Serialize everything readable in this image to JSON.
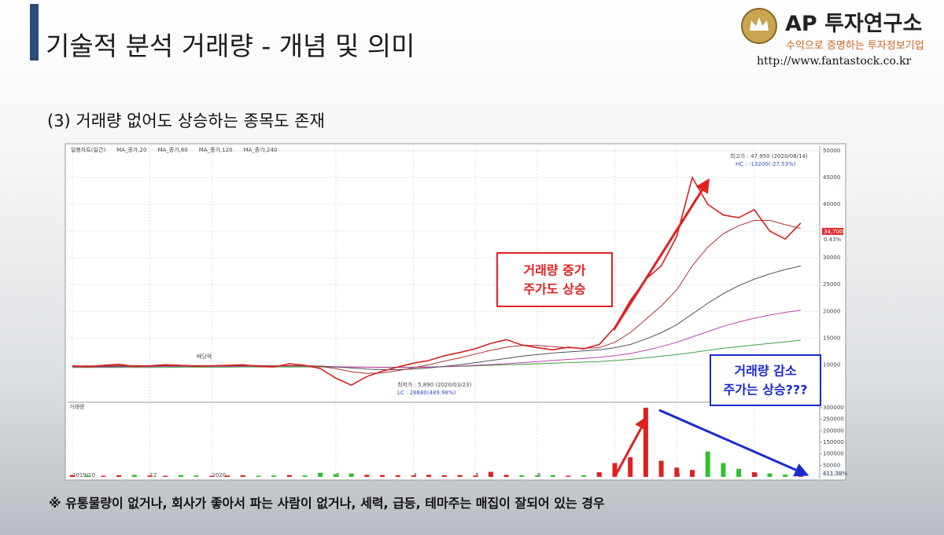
{
  "header": {
    "title": "기술적 분석 거래량 - 개념 및 의미",
    "logo_name": "AP 투자연구소",
    "logo_tagline": "수익으로 증명하는 투자정보기업",
    "url": "http://www.fantastock.co.kr"
  },
  "subtitle": "(3) 거래량 없어도 상승하는 종목도 존재",
  "chart_data": {
    "type": "line",
    "categories": [
      "2019/10",
      null,
      null,
      null,
      null,
      "12",
      null,
      null,
      null,
      "2020",
      null,
      null,
      null,
      null,
      null,
      null,
      null,
      "3",
      null,
      null,
      null,
      null,
      "4",
      null,
      null,
      null,
      "5",
      null,
      null,
      null,
      "6",
      null,
      null,
      null,
      null,
      "7",
      null,
      null,
      null,
      "8",
      null,
      null,
      null,
      null,
      "9",
      null,
      null,
      null
    ],
    "series": [
      {
        "name": "일봉차트(일간)",
        "color": "#d62020",
        "values": [
          9800,
          9600,
          9900,
          10100,
          9700,
          9800,
          10000,
          9900,
          9700,
          9800,
          9900,
          10000,
          9700,
          9600,
          10200,
          9900,
          9300,
          7500,
          6200,
          7800,
          8800,
          9600,
          10300,
          10800,
          11700,
          12300,
          13000,
          14000,
          14700,
          13700,
          13200,
          12800,
          13300,
          13000,
          13800,
          17000,
          22000,
          26000,
          28500,
          34000,
          45000,
          40000,
          38000,
          37500,
          39000,
          35000,
          33500,
          36500
        ]
      },
      {
        "name": "MA_종가,20",
        "color": "#b03030",
        "values": [
          9800,
          9800,
          9800,
          9850,
          9850,
          9800,
          9850,
          9900,
          9850,
          9850,
          9850,
          9900,
          9850,
          9800,
          9850,
          9850,
          9700,
          9300,
          8700,
          8400,
          8500,
          8900,
          9400,
          10000,
          10700,
          11300,
          12000,
          12700,
          13300,
          13600,
          13600,
          13400,
          13200,
          13100,
          13200,
          14200,
          16000,
          18500,
          21000,
          24000,
          28500,
          32000,
          34500,
          36000,
          37000,
          37000,
          36200,
          35500
        ]
      },
      {
        "name": "MA_종가,60",
        "color": "#505060",
        "values": [
          9700,
          9700,
          9700,
          9750,
          9750,
          9750,
          9800,
          9800,
          9800,
          9800,
          9800,
          9800,
          9800,
          9800,
          9800,
          9800,
          9750,
          9600,
          9400,
          9200,
          9100,
          9100,
          9200,
          9400,
          9700,
          10000,
          10400,
          10800,
          11200,
          11600,
          11900,
          12200,
          12400,
          12600,
          12800,
          13200,
          13800,
          14800,
          16000,
          17500,
          19500,
          21500,
          23300,
          24800,
          26000,
          27000,
          27800,
          28500
        ]
      },
      {
        "name": "MA_종가,120",
        "color": "#c040b0",
        "values": [
          9600,
          9600,
          9600,
          9650,
          9650,
          9650,
          9700,
          9700,
          9700,
          9700,
          9700,
          9700,
          9750,
          9750,
          9750,
          9750,
          9700,
          9650,
          9600,
          9550,
          9500,
          9500,
          9500,
          9550,
          9650,
          9750,
          9900,
          10050,
          10200,
          10400,
          10600,
          10800,
          11000,
          11200,
          11400,
          11700,
          12100,
          12700,
          13400,
          14200,
          15200,
          16200,
          17200,
          18000,
          18700,
          19300,
          19800,
          20200
        ]
      },
      {
        "name": "MA_종가,240",
        "color": "#40a040",
        "values": [
          9500,
          9500,
          9500,
          9500,
          9500,
          9500,
          9500,
          9550,
          9550,
          9550,
          9550,
          9600,
          9600,
          9600,
          9600,
          9600,
          9600,
          9600,
          9600,
          9550,
          9550,
          9550,
          9550,
          9600,
          9650,
          9700,
          9800,
          9900,
          10000,
          10100,
          10200,
          10300,
          10400,
          10500,
          10600,
          10800,
          11000,
          11300,
          11600,
          11900,
          12300,
          12700,
          13100,
          13400,
          13700,
          14000,
          14300,
          14600
        ]
      }
    ],
    "ylim": [
      3000,
      50000
    ],
    "yticks": [
      10000,
      15000,
      20000,
      25000,
      30000,
      35000,
      40000,
      45000,
      50000
    ],
    "volume": {
      "name": "거래량",
      "up_color": "#e02020",
      "down_color": "#30c030",
      "values": [
        8000,
        6000,
        5000,
        7000,
        9000,
        6000,
        5000,
        8000,
        6000,
        5000,
        6000,
        7000,
        5000,
        6000,
        8000,
        6000,
        18000,
        12000,
        15000,
        9000,
        8000,
        7000,
        6000,
        9000,
        7000,
        8000,
        6000,
        22000,
        9000,
        7000,
        6000,
        8000,
        5000,
        7000,
        20000,
        60000,
        85000,
        300000,
        70000,
        40000,
        30000,
        110000,
        60000,
        35000,
        20000,
        15000,
        10000,
        8000
      ],
      "ylim": [
        0,
        310000
      ],
      "yticks": [
        50000,
        100000,
        150000,
        200000,
        250000,
        300000
      ]
    },
    "grid": true,
    "labels": {
      "high": "최고가 : 47,950 (2020/08/14)",
      "hc": "HC : -13200(-27.53%)",
      "low": "최저가 : 5,890 (2020/03/23)",
      "lc": "LC : 28880(489.98%)",
      "dividend": "배당락",
      "price_box": "34,700",
      "price_change": "0.43%",
      "volume_ratio": "411.38%"
    }
  },
  "callouts": {
    "up": [
      "거래량 증가",
      "주가도 상승"
    ],
    "down": [
      "거래량 감소",
      "주가는 상승???"
    ]
  },
  "footnote": "※ 유통물량이 없거나, 회사가 좋아서 파는 사람이 없거나, 세력, 급등, 테마주는 매집이 잘되어 있는 경우"
}
